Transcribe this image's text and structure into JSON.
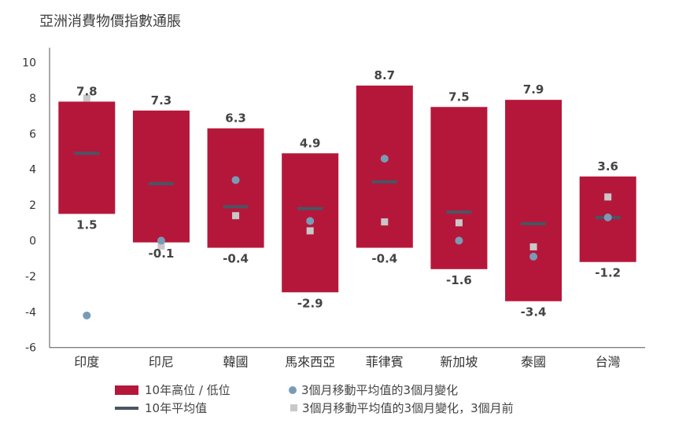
{
  "chart_data": {
    "type": "floating-bar-with-markers",
    "title": "亞洲消費物價指數通脹",
    "categories": [
      "印度",
      "印尼",
      "韓國",
      "馬來西亞",
      "菲律賓",
      "新加坡",
      "泰國",
      "台灣"
    ],
    "ylim": [
      -6,
      11
    ],
    "yticks": [
      10,
      8,
      6,
      4,
      2,
      0,
      -2,
      -4,
      -6
    ],
    "grid": false,
    "legend_position": "bottom",
    "series": [
      {
        "name": "10年高位 / 低位",
        "color": "#b5173a",
        "high": [
          7.8,
          7.3,
          6.3,
          4.9,
          8.7,
          7.5,
          7.9,
          3.6
        ],
        "low": [
          1.5,
          -0.1,
          -0.4,
          -2.9,
          -0.4,
          -1.6,
          -3.4,
          -1.2
        ],
        "high_labels": [
          "7.8",
          "7.3",
          "6.3",
          "4.9",
          "8.7",
          "7.5",
          "7.9",
          "3.6"
        ],
        "low_labels": [
          "1.5",
          "-0.1",
          "-0.4",
          "-2.9",
          "-0.4",
          "-1.6",
          "-3.4",
          "-1.2"
        ]
      },
      {
        "name": "10年平均值",
        "color": "#4a5563",
        "values": [
          4.9,
          3.2,
          1.9,
          1.8,
          3.3,
          1.6,
          0.95,
          1.3
        ]
      },
      {
        "name": "3個月移動平均值的3個月變化",
        "color": "#7a9bb5",
        "values": [
          -4.2,
          0.0,
          3.4,
          1.1,
          4.6,
          0.0,
          -0.9,
          1.3
        ]
      },
      {
        "name": "3個月移動平均值的3個月變化，3個月前",
        "color": "#c8c8c8",
        "values": [
          8.0,
          -0.3,
          1.4,
          0.55,
          1.05,
          1.0,
          -0.35,
          2.45
        ]
      }
    ]
  }
}
